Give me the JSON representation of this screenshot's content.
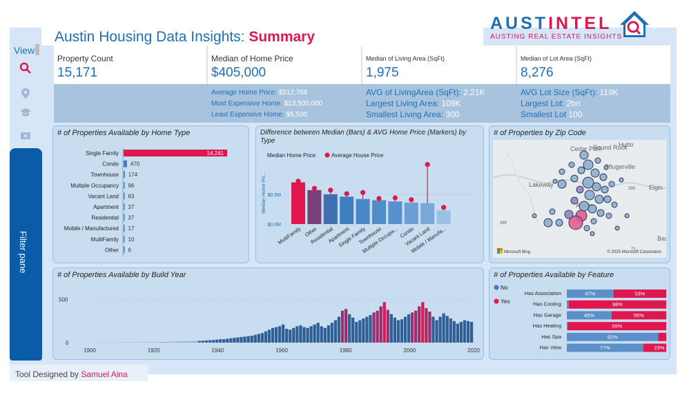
{
  "header": {
    "title_prefix": "Austin Housing Data Insights: ",
    "title_emphasis": "Summary",
    "logo_text_a": "AUST",
    "logo_text_b": "INTEL",
    "logo_tagline": "AUSTING REAL ESTATE INSIGHTS"
  },
  "nav": {
    "view_label": "View",
    "icons": [
      "search-icon",
      "map-pin-icon",
      "school-icon",
      "ticket-icon"
    ],
    "filter_pane_label": "Filter pane"
  },
  "kpis": [
    {
      "label": "Property Count",
      "value": "15,171"
    },
    {
      "label": "Median of Home Price",
      "value": "$405,000"
    },
    {
      "label": "Median of Living Area (SqFt)",
      "value": "1,975"
    },
    {
      "label": "Median of Lot Area (SqFt)",
      "value": "8,276"
    }
  ],
  "sub_stats": {
    "price": [
      {
        "label": "Average Home Price: ",
        "value": "$512,768"
      },
      {
        "label": "Most Expensive Home: ",
        "value": "$13,500,000"
      },
      {
        "label": "Least Expensive Home: ",
        "value": "$5,500"
      }
    ],
    "living": [
      {
        "label": "AVG of LivingArea (SqFt): ",
        "value": "2.21K"
      },
      {
        "label": "Largest Living Area: ",
        "value": "109K"
      },
      {
        "label": "Smallest Living Area: ",
        "value": "300"
      }
    ],
    "lot": [
      {
        "label": "AVG Lot Size (SqFt): ",
        "value": "119K"
      },
      {
        "label": "Largest Lot: ",
        "value": "2bn"
      },
      {
        "label": "Smallest Lot ",
        "value": "100"
      }
    ]
  },
  "panels": {
    "home_type": "# of Properties Available by Home Type",
    "median_vs_avg": "Difference between Median (Bars) & AVG Home Price (Markers) by Type",
    "zip": "# of Properties by Zip Code",
    "build_year": "# of Properties Available by Build Year",
    "feature": "# of Properties Available by Feature"
  },
  "map": {
    "place_labels": [
      "Cedar Park",
      "Round Rock",
      "Pflugerville",
      "Lakeway",
      "Elgin",
      "Austin",
      "Hutto",
      "Bastrop"
    ],
    "road_labels": [
      "290",
      "290",
      "71"
    ],
    "attribution_left": "Microsoft Bing",
    "attribution_right": "© 2025 Microsoft Corporation"
  },
  "colors": {
    "accent": "#e0174f",
    "brand": "#1d6fb8",
    "bar_blue": "#3f7fc0",
    "bar_light": "#8db4dc"
  },
  "footer": {
    "prefix": "Tool Designed by ",
    "author": "Samuel Aina"
  },
  "chart_data": [
    {
      "type": "bar",
      "orientation": "horizontal",
      "title": "# of Properties Available by Home Type",
      "categories": [
        "Single Family",
        "Condo",
        "Townhouse",
        "Multiple Occupancy",
        "Vacant Land",
        "Apartment",
        "Residential",
        "Mobile / Manufactured",
        "MultiFamily",
        "Other"
      ],
      "values": [
        14241,
        470,
        174,
        96,
        83,
        37,
        37,
        17,
        10,
        6
      ],
      "data_labels": [
        "14,241",
        "470",
        "174",
        "96",
        "83",
        "37",
        "37",
        "17",
        "10",
        "6"
      ]
    },
    {
      "type": "bar",
      "title": "Difference between Median (Bars) & AVG Home Price (Markers) by Type",
      "categories": [
        "MultiFamily",
        "Other",
        "Residential",
        "Apartment",
        "Single Family",
        "Townhouse",
        "Multiple Occupa...",
        "Condo",
        "Vacant Land",
        "Mobile / Manufa..."
      ],
      "series": [
        {
          "name": "Median Home Price",
          "values": [
            700000,
            570000,
            500000,
            460000,
            420000,
            400000,
            380000,
            360000,
            350000,
            230000
          ]
        },
        {
          "name": "Average House Price",
          "values": [
            720000,
            600000,
            570000,
            510000,
            530000,
            430000,
            440000,
            410000,
            1000000,
            280000
          ]
        }
      ],
      "ylabel": "Median Home Pri...",
      "yticks": [
        "$0.0M",
        "$0.5M"
      ],
      "ylim": [
        0,
        1100000
      ],
      "legend": "top-left"
    },
    {
      "type": "scatter",
      "title": "# of Properties by Zip Code",
      "note": "bubble map of zip codes around Austin"
    },
    {
      "type": "bar",
      "title": "# of Properties Available by Build Year",
      "x_start": 1900,
      "x_end": 2020,
      "xticks": [
        "1900",
        "1920",
        "1940",
        "1960",
        "1980",
        "2000",
        "2020"
      ],
      "yticks": [
        "0",
        "500"
      ],
      "ylim": [
        0,
        560
      ],
      "values": [
        2,
        2,
        2,
        2,
        2,
        2,
        2,
        2,
        2,
        2,
        3,
        3,
        3,
        3,
        4,
        4,
        5,
        5,
        6,
        6,
        8,
        8,
        9,
        10,
        10,
        12,
        13,
        14,
        15,
        16,
        18,
        20,
        22,
        25,
        28,
        30,
        35,
        38,
        40,
        45,
        50,
        55,
        60,
        65,
        70,
        75,
        80,
        90,
        100,
        110,
        130,
        150,
        170,
        180,
        190,
        210,
        160,
        150,
        170,
        190,
        200,
        180,
        170,
        190,
        210,
        230,
        190,
        170,
        200,
        230,
        260,
        300,
        370,
        390,
        330,
        290,
        240,
        260,
        280,
        300,
        320,
        350,
        370,
        420,
        470,
        380,
        330,
        290,
        260,
        270,
        300,
        330,
        350,
        370,
        420,
        470,
        400,
        360,
        300,
        260,
        300,
        340,
        310,
        280,
        250,
        220,
        240,
        260,
        250,
        240
      ],
      "highlight_note": "peak years shown in magenta"
    },
    {
      "type": "bar",
      "orientation": "horizontal",
      "stacked": true,
      "title": "# of Properties Available by Feature",
      "categories": [
        "Has Association",
        "Has Cooling",
        "Has Garage",
        "Has Heating",
        "Has Spa",
        "Has View"
      ],
      "series": [
        {
          "name": "No",
          "values": [
            47,
            2,
            45,
            1,
            92,
            77
          ],
          "labels": [
            "47%",
            "",
            "45%",
            "",
            "92%",
            "77%"
          ]
        },
        {
          "name": "Yes",
          "values": [
            53,
            98,
            55,
            99,
            8,
            23
          ],
          "labels": [
            "53%",
            "98%",
            "55%",
            "99%",
            "",
            "23%"
          ]
        }
      ],
      "legend": "left"
    }
  ]
}
